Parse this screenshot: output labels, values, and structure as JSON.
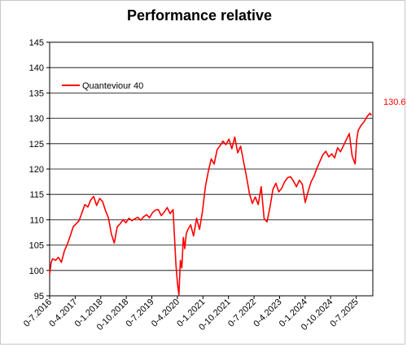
{
  "chart_data": {
    "type": "line",
    "title": "Performance relative",
    "xlabel": "",
    "ylabel": "",
    "ylim": [
      95,
      145
    ],
    "y_ticks": [
      95,
      100,
      105,
      110,
      115,
      120,
      125,
      130,
      135,
      140,
      145
    ],
    "x_ticks": [
      "0-7.2016",
      "0-4.2017",
      "0-1.2018",
      "0-10.2018",
      "0-7.2019",
      "0-4.2020",
      "0-1.2021",
      "0-10.2021",
      "0-7.2022",
      "0-4.2023",
      "0-1.2024",
      "0-10.2024",
      "0-7.2025"
    ],
    "x_unit": "months since Jul 2016",
    "x_range": [
      0,
      110
    ],
    "grid": true,
    "legend_position": "top-left",
    "line_color": "#ff0000",
    "end_value_label": "130.6",
    "series": [
      {
        "name": "Quanteviour 40",
        "x": [
          0,
          0.5,
          1,
          2,
          3,
          4,
          5,
          6,
          7,
          8,
          9,
          10,
          11,
          12,
          13,
          14,
          15,
          16,
          17,
          18,
          19,
          20,
          21,
          22,
          23,
          24,
          25,
          26,
          27,
          28,
          29,
          30,
          31,
          32,
          33,
          34,
          35,
          36,
          37,
          38,
          39,
          40,
          41,
          42,
          43,
          43.5,
          44,
          44.5,
          45,
          45.5,
          46,
          46.5,
          47,
          48,
          49,
          50,
          51,
          52,
          53,
          54,
          55,
          56,
          57,
          58,
          59,
          60,
          61,
          62,
          63,
          64,
          65,
          66,
          67,
          68,
          69,
          70,
          71,
          72,
          73,
          74,
          75,
          76,
          77,
          78,
          79,
          80,
          81,
          82,
          83,
          84,
          85,
          86,
          87,
          88,
          89,
          90,
          91,
          92,
          93,
          94,
          95,
          96,
          97,
          98,
          99,
          100,
          101,
          102,
          103,
          104,
          104.5,
          105,
          106,
          107,
          108,
          109,
          109.5
        ],
        "values": [
          99.2,
          101.5,
          102.3,
          102.0,
          102.6,
          101.6,
          103.8,
          105.2,
          106.8,
          108.6,
          109.2,
          109.8,
          111.4,
          113.0,
          112.5,
          113.9,
          114.6,
          112.8,
          114.2,
          113.6,
          111.8,
          110.4,
          107.2,
          105.4,
          108.6,
          109.2,
          110.0,
          109.4,
          110.3,
          109.8,
          110.2,
          110.5,
          109.9,
          110.6,
          111.0,
          110.4,
          111.4,
          111.9,
          112.0,
          110.8,
          111.5,
          112.4,
          111.2,
          112.0,
          101.0,
          97.5,
          95.2,
          102.0,
          100.5,
          106.5,
          104.3,
          107.2,
          108.0,
          109.0,
          106.8,
          110.3,
          108.1,
          111.6,
          116.5,
          119.5,
          122.0,
          121.0,
          123.8,
          124.6,
          125.5,
          124.8,
          125.9,
          124.0,
          126.3,
          123.2,
          124.5,
          121.5,
          118.5,
          115.2,
          113.2,
          114.5,
          113.0,
          116.5,
          110.2,
          109.6,
          112.5,
          116.0,
          117.2,
          115.5,
          116.2,
          117.5,
          118.3,
          118.5,
          117.6,
          116.5,
          117.8,
          117.0,
          113.4,
          115.6,
          117.5,
          118.6,
          120.2,
          121.5,
          122.8,
          123.5,
          122.4,
          123.0,
          122.2,
          124.2,
          123.4,
          124.6,
          125.8,
          127.0,
          122.5,
          121.0,
          125.6,
          127.6,
          128.6,
          129.3,
          130.3,
          131.0,
          130.6
        ]
      }
    ]
  }
}
